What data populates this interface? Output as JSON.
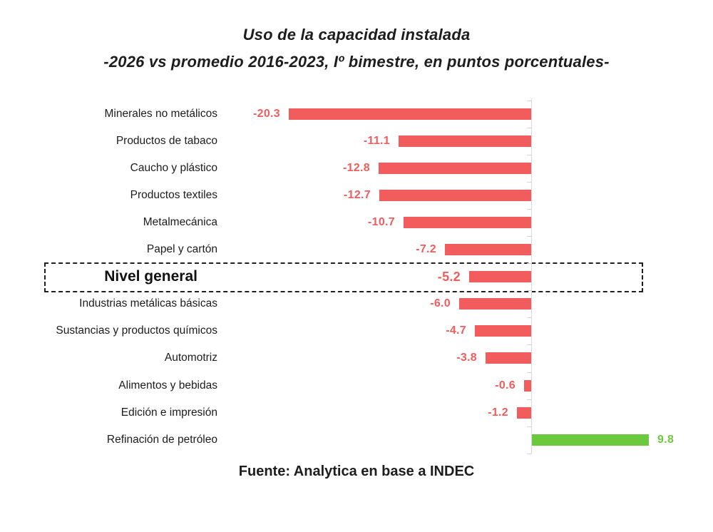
{
  "header": {
    "title": "Uso de la capacidad instalada",
    "subtitle": "-2026 vs promedio 2016-2023, Iº bimestre, en puntos porcentuales-"
  },
  "chart_data": {
    "type": "bar",
    "orientation": "horizontal",
    "title": "Uso de la capacidad instalada",
    "subtitle": "-2026 vs promedio 2016-2023, Iº bimestre, en puntos porcentuales-",
    "unit": "puntos porcentuales",
    "categories": [
      "Minerales no metálicos",
      "Productos de tabaco",
      "Caucho y plástico",
      "Productos textiles",
      "Metalmecánica",
      "Papel y cartón",
      "Nivel general",
      "Industrias metálicas básicas",
      "Sustancias y productos químicos",
      "Automotriz",
      "Alimentos y bebidas",
      "Edición e impresión",
      "Refinación de petróleo"
    ],
    "values": [
      -20.3,
      -11.1,
      -12.8,
      -12.7,
      -10.7,
      -7.2,
      -5.2,
      -6.0,
      -4.7,
      -3.8,
      -0.6,
      -1.2,
      9.8
    ],
    "value_labels": [
      "-20.3",
      "-11.1",
      "-12.8",
      "-12.7",
      "-10.7",
      "-7.2",
      "-5.2",
      "-6.0",
      "-4.7",
      "-3.8",
      "-0.6",
      "-1.2",
      "9.8"
    ],
    "highlighted_category": "Nivel general",
    "highlighted_index": 6,
    "bar_colors": {
      "negative": "#F25C5C",
      "positive": "#6CC93E"
    },
    "baseline": 0,
    "xlim": [
      -21,
      11
    ],
    "grid": false,
    "legend": false,
    "value_labels_shown": true
  },
  "footer": {
    "source": "Fuente: Analytica en base a INDEC"
  },
  "colors": {
    "background": "#FFFFFF",
    "text": "#1D1D1D",
    "axis": "#D9D9D9",
    "negative_bar": "#F25C5C",
    "positive_bar": "#6CC93E",
    "highlight_border": "#1F1F1F"
  }
}
